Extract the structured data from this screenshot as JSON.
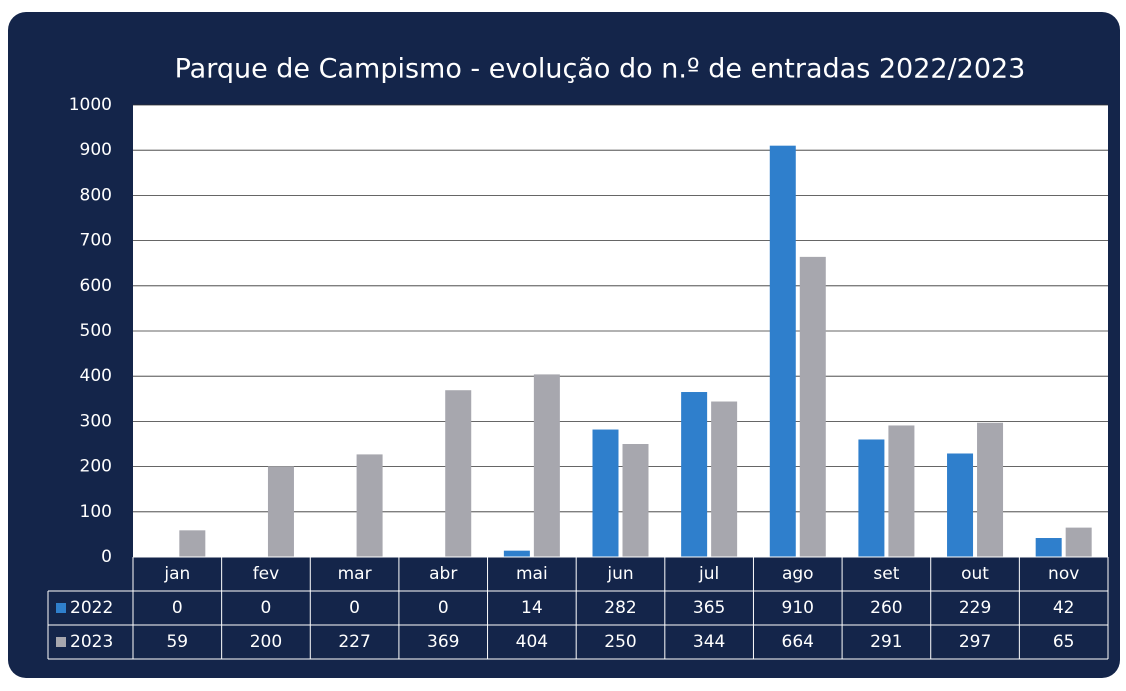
{
  "chart_data": {
    "type": "bar",
    "title": "Parque de Campismo - evolução do n.º de entradas 2022/2023",
    "categories": [
      "jan",
      "fev",
      "mar",
      "abr",
      "mai",
      "jun",
      "jul",
      "ago",
      "set",
      "out",
      "nov"
    ],
    "series": [
      {
        "name": "2022",
        "color": "#2f7fcc",
        "values": [
          0,
          0,
          0,
          0,
          14,
          282,
          365,
          910,
          260,
          229,
          42
        ]
      },
      {
        "name": "2023",
        "color": "#a7a7ae",
        "values": [
          59,
          200,
          227,
          369,
          404,
          250,
          344,
          664,
          291,
          297,
          65
        ]
      }
    ],
    "ylim": [
      0,
      1000
    ],
    "yticks": [
      0,
      100,
      200,
      300,
      400,
      500,
      600,
      700,
      800,
      900,
      1000
    ],
    "grid": true
  }
}
